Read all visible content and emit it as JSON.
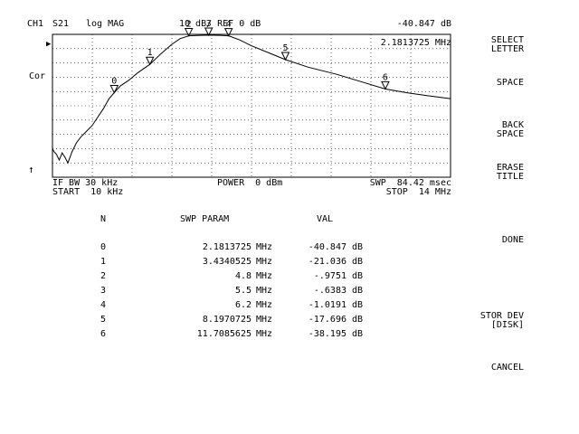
{
  "header": {
    "channel": "CH1",
    "param": "S21",
    "format": "log MAG",
    "scale": "10 dB/ REF 0 dB",
    "marker_value": "-40.847 dB",
    "marker_stim": "2.1813725 MHz"
  },
  "left_indicators": {
    "ref_arrow": "▶",
    "cor": "Cor",
    "up_arrow": "↑"
  },
  "footer": {
    "ifbw": "IF BW 30 kHz",
    "start": "START  10 kHz",
    "power": "POWER  0 dBm",
    "sweep": "SWP  84.42 msec",
    "stop": "STOP  14 MHz"
  },
  "softkeys": [
    {
      "lines": [
        "SELECT",
        "LETTER"
      ]
    },
    {
      "lines": [
        "SPACE"
      ]
    },
    {
      "lines": [
        "BACK",
        "SPACE"
      ]
    },
    {
      "lines": [
        "ERASE",
        "TITLE"
      ]
    },
    {
      "lines": [
        "DONE"
      ]
    },
    {
      "lines": [
        "STOR DEV",
        "[DISK]"
      ]
    },
    {
      "lines": [
        "CANCEL"
      ]
    }
  ],
  "table": {
    "headers": {
      "n": "N",
      "param": "SWP PARAM",
      "val": "VAL"
    },
    "rows": [
      {
        "n": "0",
        "param": "2.1813725",
        "param_unit": "MHz",
        "val": "-40.847",
        "val_unit": "dB"
      },
      {
        "n": "1",
        "param": "3.4340525",
        "param_unit": "MHz",
        "val": "-21.036",
        "val_unit": "dB"
      },
      {
        "n": "2",
        "param": "4.8",
        "param_unit": "MHz",
        "val": "-.9751",
        "val_unit": "dB"
      },
      {
        "n": "3",
        "param": "5.5",
        "param_unit": "MHz",
        "val": "-.6383",
        "val_unit": "dB"
      },
      {
        "n": "4",
        "param": "6.2",
        "param_unit": "MHz",
        "val": "-1.0191",
        "val_unit": "dB"
      },
      {
        "n": "5",
        "param": "8.1970725",
        "param_unit": "MHz",
        "val": "-17.696",
        "val_unit": "dB"
      },
      {
        "n": "6",
        "param": "11.7085625",
        "param_unit": "MHz",
        "val": "-38.195",
        "val_unit": "dB"
      }
    ]
  },
  "chart_data": {
    "type": "line",
    "xlim": [
      0.01,
      14
    ],
    "ylim": [
      -100,
      0
    ],
    "grid": true,
    "x_unit": "MHz",
    "y_unit": "dB",
    "x": [
      0.01,
      0.06,
      0.15,
      0.25,
      0.35,
      0.45,
      0.55,
      0.7,
      0.85,
      1.0,
      1.2,
      1.4,
      1.6,
      1.8,
      2.0,
      2.18,
      2.4,
      2.7,
      3.0,
      3.43,
      3.8,
      4.2,
      4.5,
      4.8,
      5.2,
      5.5,
      5.9,
      6.2,
      6.6,
      7.0,
      7.5,
      8.2,
      9.0,
      10.0,
      11.0,
      11.7,
      12.5,
      13.2,
      14.0
    ],
    "y": [
      -80,
      -82,
      -84,
      -88,
      -83,
      -86,
      -90,
      -82,
      -76,
      -72,
      -68,
      -64,
      -58,
      -52,
      -45,
      -40.8,
      -36,
      -32,
      -27,
      -21,
      -14,
      -7,
      -3,
      -1,
      -0.7,
      -0.6,
      -0.7,
      -1,
      -4,
      -8,
      -12,
      -17.7,
      -23,
      -28,
      -34,
      -38.2,
      -41,
      -43,
      -45
    ],
    "markers": [
      {
        "label": "0",
        "x": 2.1813725,
        "y": -40.847
      },
      {
        "label": "1",
        "x": 3.4340525,
        "y": -21.036
      },
      {
        "label": "2",
        "x": 4.8,
        "y": -0.9751
      },
      {
        "label": "3",
        "x": 5.5,
        "y": -0.6383
      },
      {
        "label": "4",
        "x": 6.2,
        "y": -1.0191
      },
      {
        "label": "5",
        "x": 8.1970725,
        "y": -17.696
      },
      {
        "label": "6",
        "x": 11.7085625,
        "y": -38.195
      }
    ]
  }
}
